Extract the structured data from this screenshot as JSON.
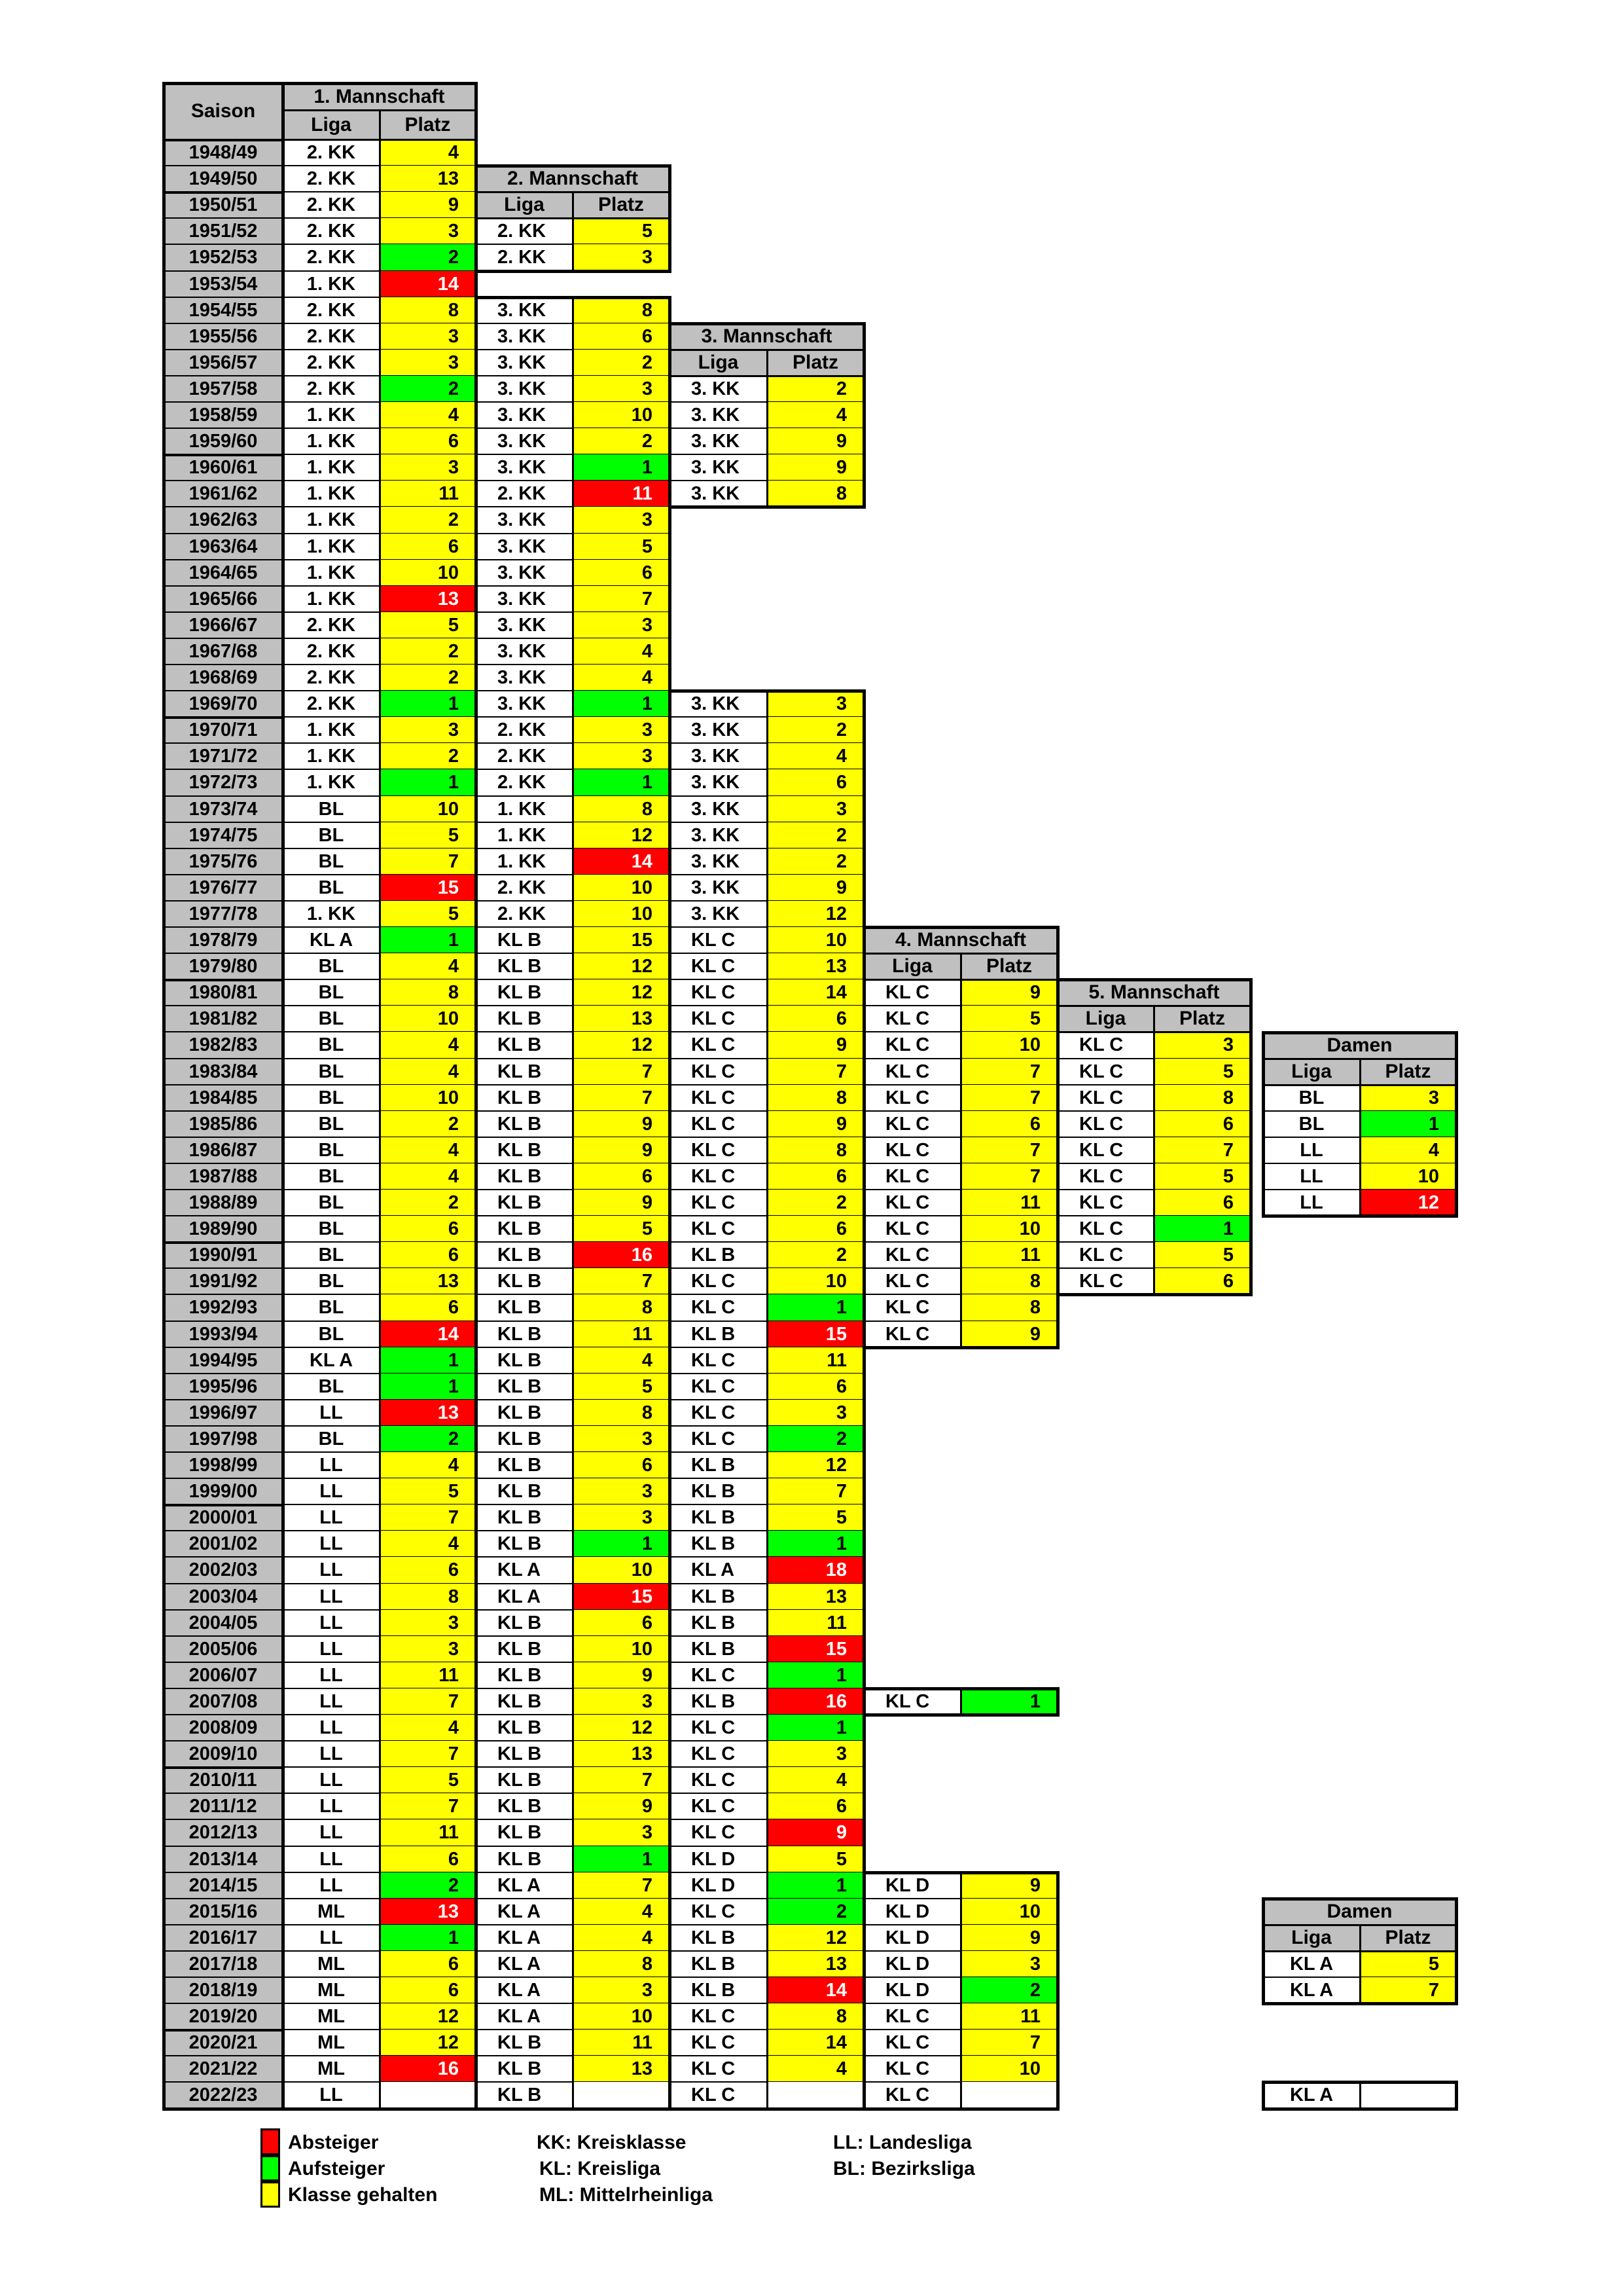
{
  "colors": {
    "red": "#ff0000",
    "green": "#00ff00",
    "yellow": "#ffff00",
    "gray": "#c0c0c0"
  },
  "headers": {
    "season": "Saison",
    "liga": "Liga",
    "platz": "Platz",
    "team1": "1. Mannschaft",
    "team2": "2. Mannschaft",
    "team3": "3. Mannschaft",
    "team4": "4. Mannschaft",
    "team5": "5. Mannschaft",
    "damen": "Damen"
  },
  "seasons": [
    "1948/49",
    "1949/50",
    "1950/51",
    "1951/52",
    "1952/53",
    "1953/54",
    "1954/55",
    "1955/56",
    "1956/57",
    "1957/58",
    "1958/59",
    "1959/60",
    "1960/61",
    "1961/62",
    "1962/63",
    "1963/64",
    "1964/65",
    "1965/66",
    "1966/67",
    "1967/68",
    "1968/69",
    "1969/70",
    "1970/71",
    "1971/72",
    "1972/73",
    "1973/74",
    "1974/75",
    "1975/76",
    "1976/77",
    "1977/78",
    "1978/79",
    "1979/80",
    "1980/81",
    "1981/82",
    "1982/83",
    "1983/84",
    "1984/85",
    "1985/86",
    "1986/87",
    "1987/88",
    "1988/89",
    "1989/90",
    "1990/91",
    "1991/92",
    "1992/93",
    "1993/94",
    "1994/95",
    "1995/96",
    "1996/97",
    "1997/98",
    "1998/99",
    "1999/00",
    "2000/01",
    "2001/02",
    "2002/03",
    "2003/04",
    "2004/05",
    "2005/06",
    "2006/07",
    "2007/08",
    "2008/09",
    "2009/10",
    "2010/11",
    "2011/12",
    "2012/13",
    "2013/14",
    "2014/15",
    "2015/16",
    "2016/17",
    "2017/18",
    "2018/19",
    "2019/20",
    "2020/21",
    "2021/22",
    "2022/23"
  ],
  "team1": [
    [
      "2. KK",
      "4",
      "Y"
    ],
    [
      "2. KK",
      "13",
      "Y"
    ],
    [
      "2. KK",
      "9",
      "Y"
    ],
    [
      "2. KK",
      "3",
      "Y"
    ],
    [
      "2. KK",
      "2",
      "G"
    ],
    [
      "1. KK",
      "14",
      "R"
    ],
    [
      "2. KK",
      "8",
      "Y"
    ],
    [
      "2. KK",
      "3",
      "Y"
    ],
    [
      "2. KK",
      "3",
      "Y"
    ],
    [
      "2. KK",
      "2",
      "G"
    ],
    [
      "1. KK",
      "4",
      "Y"
    ],
    [
      "1. KK",
      "6",
      "Y"
    ],
    [
      "1. KK",
      "3",
      "Y"
    ],
    [
      "1. KK",
      "11",
      "Y"
    ],
    [
      "1. KK",
      "2",
      "Y"
    ],
    [
      "1. KK",
      "6",
      "Y"
    ],
    [
      "1. KK",
      "10",
      "Y"
    ],
    [
      "1. KK",
      "13",
      "R"
    ],
    [
      "2. KK",
      "5",
      "Y"
    ],
    [
      "2. KK",
      "2",
      "Y"
    ],
    [
      "2. KK",
      "2",
      "Y"
    ],
    [
      "2. KK",
      "1",
      "G"
    ],
    [
      "1. KK",
      "3",
      "Y"
    ],
    [
      "1. KK",
      "2",
      "Y"
    ],
    [
      "1. KK",
      "1",
      "G"
    ],
    [
      "BL",
      "10",
      "Y"
    ],
    [
      "BL",
      "5",
      "Y"
    ],
    [
      "BL",
      "7",
      "Y"
    ],
    [
      "BL",
      "15",
      "R"
    ],
    [
      "1. KK",
      "5",
      "Y"
    ],
    [
      "KL A",
      "1",
      "G"
    ],
    [
      "BL",
      "4",
      "Y"
    ],
    [
      "BL",
      "8",
      "Y"
    ],
    [
      "BL",
      "10",
      "Y"
    ],
    [
      "BL",
      "4",
      "Y"
    ],
    [
      "BL",
      "4",
      "Y"
    ],
    [
      "BL",
      "10",
      "Y"
    ],
    [
      "BL",
      "2",
      "Y"
    ],
    [
      "BL",
      "4",
      "Y"
    ],
    [
      "BL",
      "4",
      "Y"
    ],
    [
      "BL",
      "2",
      "Y"
    ],
    [
      "BL",
      "6",
      "Y"
    ],
    [
      "BL",
      "6",
      "Y"
    ],
    [
      "BL",
      "13",
      "Y"
    ],
    [
      "BL",
      "6",
      "Y"
    ],
    [
      "BL",
      "14",
      "R"
    ],
    [
      "KL A",
      "1",
      "G"
    ],
    [
      "BL",
      "1",
      "G"
    ],
    [
      "LL",
      "13",
      "R"
    ],
    [
      "BL",
      "2",
      "G"
    ],
    [
      "LL",
      "4",
      "Y"
    ],
    [
      "LL",
      "5",
      "Y"
    ],
    [
      "LL",
      "7",
      "Y"
    ],
    [
      "LL",
      "4",
      "Y"
    ],
    [
      "LL",
      "6",
      "Y"
    ],
    [
      "LL",
      "8",
      "Y"
    ],
    [
      "LL",
      "3",
      "Y"
    ],
    [
      "LL",
      "3",
      "Y"
    ],
    [
      "LL",
      "11",
      "Y"
    ],
    [
      "LL",
      "7",
      "Y"
    ],
    [
      "LL",
      "4",
      "Y"
    ],
    [
      "LL",
      "7",
      "Y"
    ],
    [
      "LL",
      "5",
      "Y"
    ],
    [
      "LL",
      "7",
      "Y"
    ],
    [
      "LL",
      "11",
      "Y"
    ],
    [
      "LL",
      "6",
      "Y"
    ],
    [
      "LL",
      "2",
      "G"
    ],
    [
      "ML",
      "13",
      "R"
    ],
    [
      "LL",
      "1",
      "G"
    ],
    [
      "ML",
      "6",
      "Y"
    ],
    [
      "ML",
      "6",
      "Y"
    ],
    [
      "ML",
      "12",
      "Y"
    ],
    [
      "ML",
      "12",
      "Y"
    ],
    [
      "ML",
      "16",
      "R"
    ],
    [
      "LL",
      "",
      "W"
    ]
  ],
  "team2_start": 3,
  "team2_a": [
    [
      "2. KK",
      "5",
      "Y"
    ],
    [
      "2. KK",
      "3",
      "Y"
    ]
  ],
  "team2_b_start": 6,
  "team2_b": [
    [
      "3. KK",
      "8",
      "Y"
    ],
    [
      "3. KK",
      "6",
      "Y"
    ],
    [
      "3. KK",
      "2",
      "Y"
    ],
    [
      "3. KK",
      "3",
      "Y"
    ],
    [
      "3. KK",
      "10",
      "Y"
    ],
    [
      "3. KK",
      "2",
      "Y"
    ],
    [
      "3. KK",
      "1",
      "G"
    ],
    [
      "2. KK",
      "11",
      "R"
    ],
    [
      "3. KK",
      "3",
      "Y"
    ],
    [
      "3. KK",
      "5",
      "Y"
    ],
    [
      "3. KK",
      "6",
      "Y"
    ],
    [
      "3. KK",
      "7",
      "Y"
    ],
    [
      "3. KK",
      "3",
      "Y"
    ],
    [
      "3. KK",
      "4",
      "Y"
    ],
    [
      "3. KK",
      "4",
      "Y"
    ],
    [
      "3. KK",
      "1",
      "G"
    ],
    [
      "2. KK",
      "3",
      "Y"
    ],
    [
      "2. KK",
      "3",
      "Y"
    ],
    [
      "2. KK",
      "1",
      "G"
    ],
    [
      "1. KK",
      "8",
      "Y"
    ],
    [
      "1. KK",
      "12",
      "Y"
    ],
    [
      "1. KK",
      "14",
      "R"
    ],
    [
      "2. KK",
      "10",
      "Y"
    ],
    [
      "2. KK",
      "10",
      "Y"
    ],
    [
      "KL B",
      "15",
      "Y"
    ],
    [
      "KL B",
      "12",
      "Y"
    ],
    [
      "KL B",
      "12",
      "Y"
    ],
    [
      "KL B",
      "13",
      "Y"
    ],
    [
      "KL B",
      "12",
      "Y"
    ],
    [
      "KL B",
      "7",
      "Y"
    ],
    [
      "KL B",
      "7",
      "Y"
    ],
    [
      "KL B",
      "9",
      "Y"
    ],
    [
      "KL B",
      "9",
      "Y"
    ],
    [
      "KL B",
      "6",
      "Y"
    ],
    [
      "KL B",
      "9",
      "Y"
    ],
    [
      "KL B",
      "5",
      "Y"
    ],
    [
      "KL B",
      "16",
      "R"
    ],
    [
      "KL B",
      "7",
      "Y"
    ],
    [
      "KL B",
      "8",
      "Y"
    ],
    [
      "KL B",
      "11",
      "Y"
    ],
    [
      "KL B",
      "4",
      "Y"
    ],
    [
      "KL B",
      "5",
      "Y"
    ],
    [
      "KL B",
      "8",
      "Y"
    ],
    [
      "KL B",
      "3",
      "Y"
    ],
    [
      "KL B",
      "6",
      "Y"
    ],
    [
      "KL B",
      "3",
      "Y"
    ],
    [
      "KL B",
      "3",
      "Y"
    ],
    [
      "KL B",
      "1",
      "G"
    ],
    [
      "KL A",
      "10",
      "Y"
    ],
    [
      "KL A",
      "15",
      "R"
    ],
    [
      "KL B",
      "6",
      "Y"
    ],
    [
      "KL B",
      "10",
      "Y"
    ],
    [
      "KL B",
      "9",
      "Y"
    ],
    [
      "KL B",
      "3",
      "Y"
    ],
    [
      "KL B",
      "12",
      "Y"
    ],
    [
      "KL B",
      "13",
      "Y"
    ],
    [
      "KL B",
      "7",
      "Y"
    ],
    [
      "KL B",
      "9",
      "Y"
    ],
    [
      "KL B",
      "3",
      "Y"
    ],
    [
      "KL B",
      "1",
      "G"
    ],
    [
      "KL A",
      "7",
      "Y"
    ],
    [
      "KL A",
      "4",
      "Y"
    ],
    [
      "KL A",
      "4",
      "Y"
    ],
    [
      "KL A",
      "8",
      "Y"
    ],
    [
      "KL A",
      "3",
      "Y"
    ],
    [
      "KL A",
      "10",
      "Y"
    ],
    [
      "KL B",
      "11",
      "Y"
    ],
    [
      "KL B",
      "13",
      "Y"
    ],
    [
      "KL B",
      "",
      "W"
    ]
  ],
  "team3_a_start": 9,
  "team3_a": [
    [
      "3. KK",
      "2",
      "Y"
    ],
    [
      "3. KK",
      "4",
      "Y"
    ],
    [
      "3. KK",
      "9",
      "Y"
    ],
    [
      "3. KK",
      "9",
      "Y"
    ],
    [
      "3. KK",
      "8",
      "Y"
    ]
  ],
  "team3_b_start": 21,
  "team3_b": [
    [
      "3. KK",
      "3",
      "Y"
    ],
    [
      "3. KK",
      "2",
      "Y"
    ],
    [
      "3. KK",
      "4",
      "Y"
    ],
    [
      "3. KK",
      "6",
      "Y"
    ],
    [
      "3. KK",
      "3",
      "Y"
    ],
    [
      "3. KK",
      "2",
      "Y"
    ],
    [
      "3. KK",
      "2",
      "Y"
    ],
    [
      "3. KK",
      "9",
      "Y"
    ],
    [
      "3. KK",
      "12",
      "Y"
    ],
    [
      "KL C",
      "10",
      "Y"
    ],
    [
      "KL C",
      "13",
      "Y"
    ],
    [
      "KL C",
      "14",
      "Y"
    ],
    [
      "KL C",
      "6",
      "Y"
    ],
    [
      "KL C",
      "9",
      "Y"
    ],
    [
      "KL C",
      "7",
      "Y"
    ],
    [
      "KL C",
      "8",
      "Y"
    ],
    [
      "KL C",
      "9",
      "Y"
    ],
    [
      "KL C",
      "8",
      "Y"
    ],
    [
      "KL C",
      "6",
      "Y"
    ],
    [
      "KL C",
      "2",
      "Y"
    ],
    [
      "KL C",
      "6",
      "Y"
    ],
    [
      "KL B",
      "2",
      "Y"
    ],
    [
      "KL C",
      "10",
      "Y"
    ],
    [
      "KL C",
      "1",
      "G"
    ],
    [
      "KL B",
      "15",
      "R"
    ],
    [
      "KL C",
      "11",
      "Y"
    ],
    [
      "KL C",
      "6",
      "Y"
    ],
    [
      "KL C",
      "3",
      "Y"
    ],
    [
      "KL C",
      "2",
      "G"
    ],
    [
      "KL B",
      "12",
      "Y"
    ],
    [
      "KL B",
      "7",
      "Y"
    ],
    [
      "KL B",
      "5",
      "Y"
    ],
    [
      "KL B",
      "1",
      "G"
    ],
    [
      "KL A",
      "18",
      "R"
    ],
    [
      "KL B",
      "13",
      "Y"
    ],
    [
      "KL B",
      "11",
      "Y"
    ],
    [
      "KL B",
      "15",
      "R"
    ],
    [
      "KL C",
      "1",
      "G"
    ],
    [
      "KL B",
      "16",
      "R"
    ],
    [
      "KL C",
      "1",
      "G"
    ],
    [
      "KL C",
      "3",
      "Y"
    ],
    [
      "KL C",
      "4",
      "Y"
    ],
    [
      "KL C",
      "6",
      "Y"
    ],
    [
      "KL C",
      "9",
      "R"
    ],
    [
      "KL D",
      "5",
      "Y"
    ],
    [
      "KL D",
      "1",
      "G"
    ],
    [
      "KL C",
      "2",
      "G"
    ],
    [
      "KL B",
      "12",
      "Y"
    ],
    [
      "KL B",
      "13",
      "Y"
    ],
    [
      "KL B",
      "14",
      "R"
    ],
    [
      "KL C",
      "8",
      "Y"
    ],
    [
      "KL C",
      "14",
      "Y"
    ],
    [
      "KL C",
      "4",
      "Y"
    ],
    [
      "KL C",
      "",
      "W"
    ]
  ],
  "team4_a_start": 32,
  "team4_a": [
    [
      "KL C",
      "9",
      "Y"
    ],
    [
      "KL C",
      "5",
      "Y"
    ],
    [
      "KL C",
      "10",
      "Y"
    ],
    [
      "KL C",
      "7",
      "Y"
    ],
    [
      "KL C",
      "7",
      "Y"
    ],
    [
      "KL C",
      "6",
      "Y"
    ],
    [
      "KL C",
      "7",
      "Y"
    ],
    [
      "KL C",
      "7",
      "Y"
    ],
    [
      "KL C",
      "11",
      "Y"
    ],
    [
      "KL C",
      "10",
      "Y"
    ],
    [
      "KL C",
      "11",
      "Y"
    ],
    [
      "KL C",
      "8",
      "Y"
    ],
    [
      "KL C",
      "8",
      "Y"
    ],
    [
      "KL C",
      "9",
      "Y"
    ]
  ],
  "team4_b_start": 59,
  "team4_b": [
    [
      "KL C",
      "1",
      "G"
    ]
  ],
  "team4_c_start": 66,
  "team4_c": [
    [
      "KL D",
      "9",
      "Y"
    ],
    [
      "KL D",
      "10",
      "Y"
    ],
    [
      "KL D",
      "9",
      "Y"
    ],
    [
      "KL D",
      "3",
      "Y"
    ],
    [
      "KL D",
      "2",
      "G"
    ],
    [
      "KL C",
      "11",
      "Y"
    ],
    [
      "KL C",
      "7",
      "Y"
    ],
    [
      "KL C",
      "10",
      "Y"
    ],
    [
      "KL C",
      "",
      "W"
    ]
  ],
  "team5_start": 34,
  "team5": [
    [
      "KL C",
      "3",
      "Y"
    ],
    [
      "KL C",
      "5",
      "Y"
    ],
    [
      "KL C",
      "8",
      "Y"
    ],
    [
      "KL C",
      "6",
      "Y"
    ],
    [
      "KL C",
      "7",
      "Y"
    ],
    [
      "KL C",
      "5",
      "Y"
    ],
    [
      "KL C",
      "6",
      "Y"
    ],
    [
      "KL C",
      "1",
      "G"
    ],
    [
      "KL C",
      "5",
      "Y"
    ],
    [
      "KL C",
      "6",
      "Y"
    ]
  ],
  "damen1_start": 36,
  "damen1": [
    [
      "BL",
      "3",
      "Y"
    ],
    [
      "BL",
      "1",
      "G"
    ],
    [
      "LL",
      "4",
      "Y"
    ],
    [
      "LL",
      "10",
      "Y"
    ],
    [
      "LL",
      "12",
      "R"
    ]
  ],
  "damen2_start": 69,
  "damen2": [
    [
      "KL A",
      "5",
      "Y"
    ],
    [
      "KL A",
      "7",
      "Y"
    ]
  ],
  "damen3_start": 74,
  "damen3": [
    [
      "KL A",
      "",
      "W"
    ]
  ],
  "legend": {
    "absteiger": "Absteiger",
    "aufsteiger": "Aufsteiger",
    "gehalten": "Klasse gehalten",
    "kk": "KK: Kreisklasse",
    "kl": "KL: Kreisliga",
    "ml": "ML: Mittelrheinliga",
    "ll": "LL: Landesliga",
    "bl": "BL: Bezirksliga"
  }
}
